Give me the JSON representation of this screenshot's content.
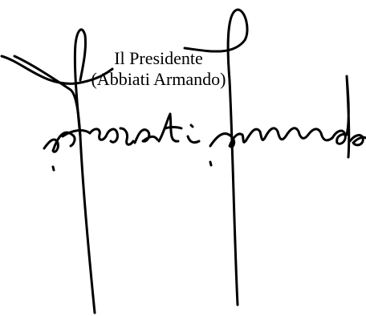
{
  "signature": {
    "role": "Il Presidente",
    "name": "(Abbiati Armando)"
  }
}
